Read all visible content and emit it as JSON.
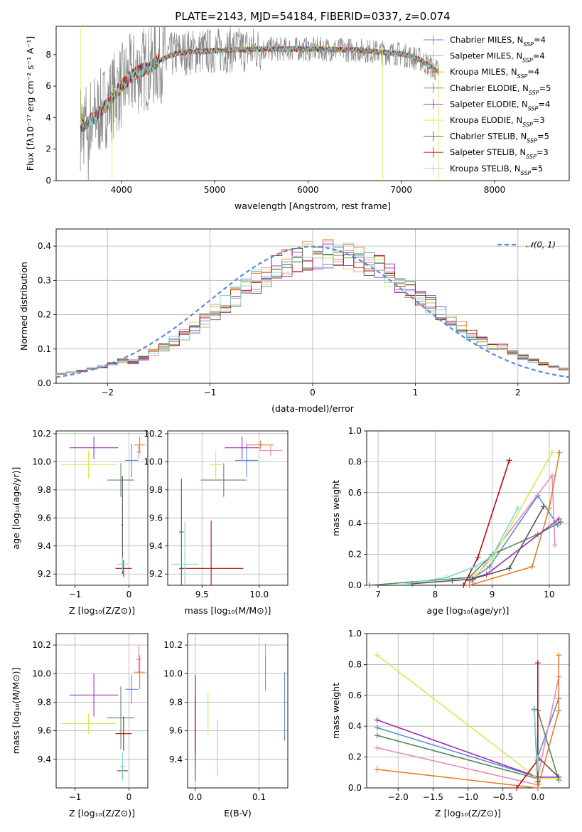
{
  "title": "PLATE=2143, MJD=54184, FIBERID=0337, z=0.074",
  "colors": {
    "chabrier_miles": "#5b8ad8",
    "salpeter_miles": "#e98ab8",
    "kroupa_miles": "#e67e22",
    "chabrier_elodie": "#5a8a5a",
    "salpeter_elodie": "#9b2db2",
    "kroupa_elodie": "#d4ea4f",
    "chabrier_stelib": "#555555",
    "salpeter_stelib": "#b01010",
    "kroupa_stelib": "#7fd8d8",
    "data": "#888888"
  },
  "legend": [
    {
      "key": "chabrier_miles",
      "pre": "Chabrier MILES, N",
      "sub": "SSP",
      "post": "=4"
    },
    {
      "key": "salpeter_miles",
      "pre": "Salpeter MILES, N",
      "sub": "SSP",
      "post": "=4"
    },
    {
      "key": "kroupa_miles",
      "pre": "Kroupa MILES, N",
      "sub": "SSP",
      "post": "=4"
    },
    {
      "key": "chabrier_elodie",
      "pre": "Chabrier ELODIE, N",
      "sub": "SSP",
      "post": "=5"
    },
    {
      "key": "salpeter_elodie",
      "pre": "Salpeter ELODIE, N",
      "sub": "SSP",
      "post": "=4"
    },
    {
      "key": "kroupa_elodie",
      "pre": "Kroupa ELODIE, N",
      "sub": "SSP",
      "post": "=3"
    },
    {
      "key": "chabrier_stelib",
      "pre": "Chabrier STELIB, N",
      "sub": "SSP",
      "post": "=5"
    },
    {
      "key": "salpeter_stelib",
      "pre": "Salpeter STELIB, N",
      "sub": "SSP",
      "post": "=3"
    },
    {
      "key": "kroupa_stelib",
      "pre": "Kroupa STELIB, N",
      "sub": "SSP",
      "post": "=5"
    }
  ],
  "chart_data": [
    {
      "type": "line",
      "id": "spectrum",
      "xlabel": "wavelength [Angstrom, rest frame]",
      "ylabel": "Flux [f_λ 10^-17 erg cm^-2 s^-1 A^-1]",
      "xlim": [
        3300,
        8800
      ],
      "ylim": [
        0,
        9.8
      ],
      "xticks": [
        4000,
        5000,
        6000,
        7000,
        8000
      ],
      "yticks": [
        0,
        2,
        4,
        6,
        8
      ],
      "continuum": [
        [
          3560,
          3.4
        ],
        [
          3700,
          4.0
        ],
        [
          3800,
          4.5
        ],
        [
          3900,
          5.3
        ],
        [
          4000,
          6.0
        ],
        [
          4100,
          6.6
        ],
        [
          4200,
          7.0
        ],
        [
          4300,
          7.2
        ],
        [
          4400,
          7.6
        ],
        [
          4500,
          7.9
        ],
        [
          4600,
          8.1
        ],
        [
          4800,
          8.2
        ],
        [
          5000,
          8.25
        ],
        [
          5200,
          8.3
        ],
        [
          5500,
          8.35
        ],
        [
          6000,
          8.35
        ],
        [
          6500,
          8.3
        ],
        [
          7000,
          8.05
        ],
        [
          7200,
          7.7
        ],
        [
          7400,
          6.9
        ]
      ],
      "grid": false
    },
    {
      "type": "step",
      "id": "residuals",
      "xlabel": "(data-model)/error",
      "ylabel": "Normed distribution",
      "xlim": [
        -2.5,
        2.5
      ],
      "ylim": [
        0,
        0.45
      ],
      "xticks": [
        -2,
        -1,
        0,
        1,
        2
      ],
      "yticks": [
        0.0,
        0.1,
        0.2,
        0.3,
        0.4
      ],
      "legend": "N(0,1)",
      "grid": true
    },
    {
      "type": "scatter",
      "id": "age_vs_Z",
      "xlabel": "Z [log10(Z/Z⊙)]",
      "ylabel": "age [log10(age/yr)]",
      "xlim": [
        -1.35,
        0.35
      ],
      "ylim": [
        9.12,
        10.22
      ],
      "xticks": [
        -1,
        0
      ],
      "yticks": [
        9.2,
        9.4,
        9.6,
        9.8,
        10.0,
        10.2
      ],
      "points": [
        {
          "key": "chabrier_miles",
          "x": 0.05,
          "y": 10.01,
          "xe": 0.12,
          "ye": 0.12
        },
        {
          "key": "salpeter_miles",
          "x": 0.18,
          "y": 10.07,
          "xe": 0.05,
          "ye": 0.05
        },
        {
          "key": "kroupa_miles",
          "x": 0.2,
          "y": 10.12,
          "xe": 0.1,
          "ye": 0.06
        },
        {
          "key": "chabrier_elodie",
          "x": -0.15,
          "y": 9.87,
          "xe": 0.25,
          "ye": 0.12
        },
        {
          "key": "salpeter_elodie",
          "x": -0.65,
          "y": 10.1,
          "xe": 0.45,
          "ye": 0.08
        },
        {
          "key": "kroupa_elodie",
          "x": -0.75,
          "y": 9.98,
          "xe": 0.5,
          "ye": 0.1
        },
        {
          "key": "chabrier_stelib",
          "x": -0.12,
          "y": 9.55,
          "xe": 0.02,
          "ye": 0.35
        },
        {
          "key": "salpeter_stelib",
          "x": -0.1,
          "y": 9.24,
          "xe": 0.15,
          "ye": 0.06
        },
        {
          "key": "kroupa_stelib",
          "x": -0.12,
          "y": 9.27,
          "xe": 0.1,
          "ye": 0.05
        }
      ]
    },
    {
      "type": "scatter",
      "id": "age_vs_mass",
      "xlabel": "mass [log10(M/M⊙)]",
      "ylabel": "",
      "xlim": [
        9.2,
        10.25
      ],
      "ylim": [
        9.12,
        10.22
      ],
      "xticks": [
        9.5,
        10.0
      ],
      "yticks": [
        9.2,
        9.4,
        9.6,
        9.8,
        10.0,
        10.2
      ],
      "points": [
        {
          "key": "chabrier_miles",
          "x": 9.89,
          "y": 10.01,
          "xe": 0.1,
          "ye": 0.12
        },
        {
          "key": "salpeter_miles",
          "x": 10.1,
          "y": 10.08,
          "xe": 0.1,
          "ye": 0.04
        },
        {
          "key": "kroupa_miles",
          "x": 10.01,
          "y": 10.12,
          "xe": 0.12,
          "ye": 0.03
        },
        {
          "key": "chabrier_elodie",
          "x": 9.69,
          "y": 9.87,
          "xe": 0.2,
          "ye": 0.12
        },
        {
          "key": "salpeter_elodie",
          "x": 9.85,
          "y": 10.1,
          "xe": 0.15,
          "ye": 0.08
        },
        {
          "key": "kroupa_elodie",
          "x": 9.62,
          "y": 9.98,
          "xe": 0.05,
          "ye": 0.1
        },
        {
          "key": "chabrier_stelib",
          "x": 9.32,
          "y": 9.5,
          "xe": 0.02,
          "ye": 0.38
        },
        {
          "key": "salpeter_stelib",
          "x": 9.58,
          "y": 9.24,
          "xe": 0.28,
          "ye": 0.34
        },
        {
          "key": "kroupa_stelib",
          "x": 9.35,
          "y": 9.27,
          "xe": 0.12,
          "ye": 0.3
        }
      ]
    },
    {
      "type": "line",
      "id": "weight_vs_age",
      "xlabel": "age [log10(age/yr)]",
      "ylabel": "mass weight",
      "xlim": [
        6.8,
        10.35
      ],
      "ylim": [
        0,
        1.0
      ],
      "xticks": [
        7,
        8,
        9,
        10
      ],
      "yticks": [
        0.0,
        0.2,
        0.4,
        0.6,
        0.8,
        1.0
      ],
      "series": [
        {
          "key": "chabrier_miles",
          "x": [
            8.6,
            8.95,
            9.8,
            10.15
          ],
          "y": [
            0.03,
            0.12,
            0.58,
            0.39
          ]
        },
        {
          "key": "salpeter_miles",
          "x": [
            8.65,
            9.0,
            10.05,
            10.1
          ],
          "y": [
            0.02,
            0.2,
            0.71,
            0.26
          ]
        },
        {
          "key": "kroupa_miles",
          "x": [
            8.6,
            9.7,
            10.0,
            10.18
          ],
          "y": [
            0.0,
            0.12,
            0.5,
            0.86
          ]
        },
        {
          "key": "chabrier_elodie",
          "x": [
            6.85,
            8.6,
            9.0,
            9.8,
            10.2
          ],
          "y": [
            0.0,
            0.05,
            0.2,
            0.33,
            0.41
          ]
        },
        {
          "key": "salpeter_elodie",
          "x": [
            8.7,
            8.9,
            10.17
          ],
          "y": [
            0.05,
            0.07,
            0.43
          ]
        },
        {
          "key": "kroupa_elodie",
          "x": [
            8.7,
            9.0,
            10.05
          ],
          "y": [
            0.06,
            0.17,
            0.86
          ]
        },
        {
          "key": "chabrier_stelib",
          "x": [
            7.6,
            8.3,
            8.65,
            9.3,
            9.9
          ],
          "y": [
            0.01,
            0.03,
            0.04,
            0.11,
            0.51
          ]
        },
        {
          "key": "salpeter_stelib",
          "x": [
            8.5,
            8.75,
            9.3
          ],
          "y": [
            0.0,
            0.18,
            0.81
          ]
        },
        {
          "key": "kroupa_stelib",
          "x": [
            7.5,
            8.2,
            8.7,
            9.0,
            9.45
          ],
          "y": [
            0.01,
            0.05,
            0.12,
            0.19,
            0.5
          ]
        }
      ]
    },
    {
      "type": "scatter",
      "id": "mass_vs_Z",
      "xlabel": "Z [log10(Z/Z⊙)]",
      "ylabel": "mass [log10(M/M⊙)]",
      "xlim": [
        -1.35,
        0.35
      ],
      "ylim": [
        9.2,
        10.28
      ],
      "xticks": [
        -1,
        0
      ],
      "yticks": [
        9.4,
        9.6,
        9.8,
        10.0,
        10.2
      ],
      "points": [
        {
          "key": "chabrier_miles",
          "x": 0.05,
          "y": 9.89,
          "xe": 0.12,
          "ye": 0.1
        },
        {
          "key": "salpeter_miles",
          "x": 0.18,
          "y": 10.1,
          "xe": 0.05,
          "ye": 0.1
        },
        {
          "key": "kroupa_miles",
          "x": 0.2,
          "y": 10.01,
          "xe": 0.1,
          "ye": 0.12
        },
        {
          "key": "chabrier_elodie",
          "x": -0.15,
          "y": 9.69,
          "xe": 0.25,
          "ye": 0.22
        },
        {
          "key": "salpeter_elodie",
          "x": -0.65,
          "y": 9.85,
          "xe": 0.45,
          "ye": 0.15
        },
        {
          "key": "kroupa_elodie",
          "x": -0.75,
          "y": 9.65,
          "xe": 0.5,
          "ye": 0.07
        },
        {
          "key": "chabrier_stelib",
          "x": -0.12,
          "y": 9.32,
          "xe": 0.1,
          "ye": 0.05
        },
        {
          "key": "salpeter_stelib",
          "x": -0.1,
          "y": 9.58,
          "xe": 0.15,
          "ye": 0.12
        },
        {
          "key": "kroupa_stelib",
          "x": -0.12,
          "y": 9.35,
          "xe": 0.05,
          "ye": 0.1
        }
      ]
    },
    {
      "type": "scatter",
      "id": "mass_vs_ebv",
      "xlabel": "E(B-V)",
      "ylabel": "",
      "xlim": [
        -0.012,
        0.145
      ],
      "ylim": [
        9.2,
        10.28
      ],
      "xticks": [
        0.0,
        0.1
      ],
      "yticks": [
        9.4,
        9.6,
        9.8,
        10.0,
        10.2
      ],
      "points": [
        {
          "key": "chabrier_miles",
          "x": 0.14,
          "y": 9.77,
          "xe": 0,
          "ye": 0.24
        },
        {
          "key": "salpeter_miles",
          "x": 0.11,
          "y": 10.13,
          "xe": 0,
          "ye": 0.08
        },
        {
          "key": "kroupa_miles",
          "x": 0.11,
          "y": 10.0,
          "xe": 0,
          "ye": 0.12
        },
        {
          "key": "chabrier_elodie",
          "x": 0.0,
          "y": 9.55,
          "xe": 0,
          "ye": 0.2
        },
        {
          "key": "salpeter_elodie",
          "x": 0.0,
          "y": 9.62,
          "xe": 0,
          "ye": 0.15
        },
        {
          "key": "kroupa_elodie",
          "x": 0.02,
          "y": 9.72,
          "xe": 0,
          "ye": 0.15
        },
        {
          "key": "chabrier_stelib",
          "x": 0.0,
          "y": 9.55,
          "xe": 0,
          "ye": 0.3
        },
        {
          "key": "salpeter_stelib",
          "x": 0.0,
          "y": 9.72,
          "xe": 0,
          "ye": 0.27
        },
        {
          "key": "kroupa_stelib",
          "x": 0.035,
          "y": 9.48,
          "xe": 0,
          "ye": 0.2
        }
      ]
    },
    {
      "type": "line",
      "id": "weight_vs_Z",
      "xlabel": "Z [log10(Z/Z⊙)]",
      "ylabel": "mass weight",
      "xlim": [
        -2.45,
        0.45
      ],
      "ylim": [
        0,
        1.0
      ],
      "xticks": [
        -2.0,
        -1.5,
        -1.0,
        -0.5,
        0.0
      ],
      "yticks": [
        0.0,
        0.2,
        0.4,
        0.6,
        0.8,
        1.0
      ],
      "series": [
        {
          "key": "chabrier_miles",
          "x": [
            -2.3,
            0.0,
            0.0,
            0.3
          ],
          "y": [
            0.39,
            0.07,
            0.2,
            0.58
          ]
        },
        {
          "key": "salpeter_miles",
          "x": [
            -2.3,
            0.0,
            0.0,
            0.3
          ],
          "y": [
            0.26,
            0.02,
            0.07,
            0.72
          ]
        },
        {
          "key": "kroupa_miles",
          "x": [
            -2.3,
            0.0,
            0.3,
            0.3
          ],
          "y": [
            0.12,
            0.0,
            0.5,
            0.86
          ]
        },
        {
          "key": "chabrier_elodie",
          "x": [
            -2.3,
            0.0,
            0.0,
            0.3
          ],
          "y": [
            0.34,
            0.06,
            0.5,
            0.05
          ]
        },
        {
          "key": "salpeter_elodie",
          "x": [
            -2.3,
            0.0,
            0.3
          ],
          "y": [
            0.44,
            0.07,
            0.07
          ]
        },
        {
          "key": "kroupa_elodie",
          "x": [
            -2.3,
            0.0,
            0.3
          ],
          "y": [
            0.86,
            0.06,
            0.06
          ]
        },
        {
          "key": "chabrier_stelib",
          "x": [
            -0.05,
            0.0,
            0.0,
            0.3
          ],
          "y": [
            0.51,
            0.04,
            0.2,
            0.07
          ]
        },
        {
          "key": "salpeter_stelib",
          "x": [
            -0.3,
            0.0,
            0.0
          ],
          "y": [
            0.0,
            0.18,
            0.81
          ]
        },
        {
          "key": "kroupa_stelib",
          "x": [
            -0.05,
            0.0,
            0.0
          ],
          "y": [
            0.5,
            0.12,
            0.2
          ]
        }
      ]
    }
  ]
}
